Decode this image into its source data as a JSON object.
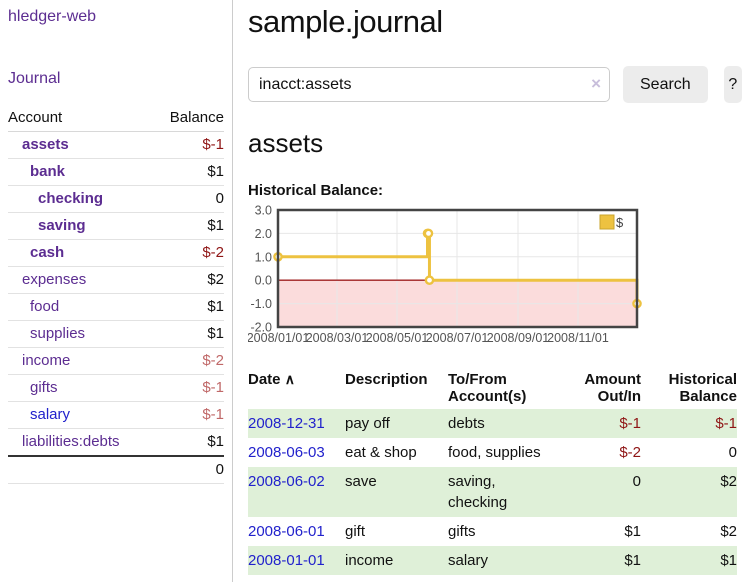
{
  "app": {
    "brand": "hledger-web",
    "nav_journal": "Journal"
  },
  "sidebar": {
    "header": {
      "account": "Account",
      "balance": "Balance"
    },
    "accounts": [
      {
        "name": "assets",
        "balance": "$-1"
      },
      {
        "name": "bank",
        "balance": "$1"
      },
      {
        "name": "checking",
        "balance": "0"
      },
      {
        "name": "saving",
        "balance": "$1"
      },
      {
        "name": "cash",
        "balance": "$-2"
      },
      {
        "name": "expenses",
        "balance": "$2"
      },
      {
        "name": "food",
        "balance": "$1"
      },
      {
        "name": "supplies",
        "balance": "$1"
      },
      {
        "name": "income",
        "balance": "$-2"
      },
      {
        "name": "gifts",
        "balance": "$-1"
      },
      {
        "name": "salary",
        "balance": "$-1"
      },
      {
        "name": "liabilities:debts",
        "balance": "$1"
      }
    ],
    "total": "0"
  },
  "main": {
    "title": "sample.journal",
    "search": {
      "value": "inacct:assets",
      "clear_icon": "×",
      "button": "Search",
      "help": "?"
    },
    "account_heading": "assets",
    "chart_label": "Historical Balance:"
  },
  "chart_data": {
    "type": "line",
    "title": "Historical Balance",
    "series": [
      {
        "name": "$",
        "step": true,
        "points": [
          {
            "date": "2008-01-01",
            "day": 0,
            "value": 1
          },
          {
            "date": "2008-06-01",
            "day": 152,
            "value": 2
          },
          {
            "date": "2008-06-02",
            "day": 153,
            "value": 2
          },
          {
            "date": "2008-06-03",
            "day": 154,
            "value": 0
          },
          {
            "date": "2008-12-31",
            "day": 365,
            "value": -1
          }
        ]
      }
    ],
    "x_tick_labels": [
      "2008/01/01",
      "2008/03/01",
      "2008/05/01",
      "2008/07/01",
      "2008/09/01",
      "2008/11/01"
    ],
    "x_tick_days": [
      0,
      60,
      121,
      182,
      244,
      305
    ],
    "x_range_days": [
      0,
      365
    ],
    "y_tick_labels": [
      "3.0",
      "2.0",
      "1.0",
      "0.0",
      "-1.0",
      "-2.0"
    ],
    "y_ticks": [
      3,
      2,
      1,
      0,
      -1,
      -2
    ],
    "ylim": [
      -2,
      3
    ],
    "grid": true,
    "legend_position": "top-right",
    "legend": [
      {
        "label": "$",
        "color": "#edc240"
      }
    ],
    "colors": {
      "line": "#edc240",
      "marker_fill": "#ffffff",
      "negative_region": "#fbdcdc",
      "zero_line": "#a02020",
      "grid": "#e7e7e7",
      "border": "#444444",
      "tick_text": "#545454"
    }
  },
  "register": {
    "headers": {
      "date": "Date",
      "sort_arrow": "∧",
      "description": "Description",
      "accounts": "To/From Account(s)",
      "amount": "Amount Out/In",
      "balance": "Historical Balance"
    },
    "rows": [
      {
        "date": "2008-12-31",
        "description": "pay off",
        "accounts": "debts",
        "amount": "$-1",
        "balance": "$-1"
      },
      {
        "date": "2008-06-03",
        "description": "eat & shop",
        "accounts": "food, supplies",
        "amount": "$-2",
        "balance": "0"
      },
      {
        "date": "2008-06-02",
        "description": "save",
        "accounts": "saving, checking",
        "amount": "0",
        "balance": "$2"
      },
      {
        "date": "2008-06-01",
        "description": "gift",
        "accounts": "gifts",
        "amount": "$1",
        "balance": "$2"
      },
      {
        "date": "2008-01-01",
        "description": "income",
        "accounts": "salary",
        "amount": "$1",
        "balance": "$1"
      }
    ]
  }
}
